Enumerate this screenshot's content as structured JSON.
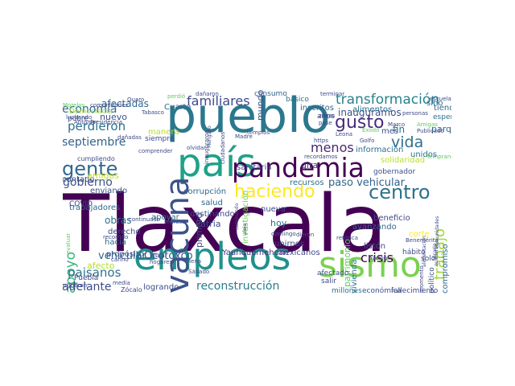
{
  "palette": {
    "purple": "#440154",
    "indigo": "#3b528b",
    "teal": "#21908d",
    "green": "#5dc963",
    "lime": "#8fd744",
    "yellow": "#fde725"
  },
  "words": [
    {
      "text": "Tlaxcala",
      "color": "#440154"
    },
    {
      "text": "pueblo",
      "color": "#2a788e"
    },
    {
      "text": "país",
      "color": "#1fa187"
    },
    {
      "text": "empleos",
      "color": "#21918c"
    },
    {
      "text": "sismo",
      "color": "#7ad151"
    },
    {
      "text": "pandemia",
      "color": "#440154"
    },
    {
      "text": "vacuna",
      "color": "#3b528b"
    },
    {
      "text": "haciendo",
      "color": "#fde725"
    },
    {
      "text": "gente",
      "color": "#31688e"
    },
    {
      "text": "centro",
      "color": "#2c728e"
    },
    {
      "text": "transformación",
      "color": "#26828e"
    },
    {
      "text": "familiares",
      "color": "#3e4a89"
    },
    {
      "text": "septiembre",
      "color": "#33638d"
    },
    {
      "text": "perdieron",
      "color": "#2d708e"
    },
    {
      "text": "economía",
      "color": "#31688e"
    },
    {
      "text": "gobierno",
      "color": "#3b528b"
    },
    {
      "text": "gusto",
      "color": "#472d7b"
    },
    {
      "text": "vida",
      "color": "#2c728e"
    },
    {
      "text": "menos",
      "color": "#482878"
    },
    {
      "text": "trabajo",
      "color": "#a0da39"
    },
    {
      "text": "apoyo",
      "color": "#35b779"
    },
    {
      "text": "paisanos",
      "color": "#2c728e"
    },
    {
      "text": "adelante",
      "color": "#3e4a89"
    },
    {
      "text": "reconstrucción",
      "color": "#287c8e"
    },
    {
      "text": "crisis",
      "color": "#440154"
    },
    {
      "text": "vehicular",
      "color": "#31688e"
    },
    {
      "text": "Ocotoxco",
      "color": "#3b528b"
    },
    {
      "text": "paso vehicular",
      "color": "#33638d"
    },
    {
      "text": "afectadas",
      "color": "#31688e"
    },
    {
      "text": "inauguramos",
      "color": "#3b528b"
    },
    {
      "text": "inscritos",
      "color": "#31688e"
    },
    {
      "text": "alimentos",
      "color": "#2d708e"
    },
    {
      "text": "mexicanos",
      "color": "#3e4a89"
    },
    {
      "text": "Yauhquemehcan",
      "color": "#46327e"
    },
    {
      "text": "nuevo",
      "color": "#3b528b"
    },
    {
      "text": "Cuarta",
      "color": "#31688e"
    },
    {
      "text": "Patria",
      "color": "#3e4a89"
    },
    {
      "text": "salud",
      "color": "#33638d"
    },
    {
      "text": "nueva",
      "color": "#3e4a89"
    },
    {
      "text": "hoy",
      "color": "#2c728e"
    },
    {
      "text": "obras",
      "color": "#2d708e"
    },
    {
      "text": "derecho",
      "color": "#3e4a89"
    },
    {
      "text": "hacia",
      "color": "#31688e"
    },
    {
      "text": "apoyar",
      "color": "#2c728e"
    },
    {
      "text": "enviando",
      "color": "#3b528b"
    },
    {
      "text": "recursos",
      "color": "#2c728e"
    },
    {
      "text": "información",
      "color": "#2d708e"
    },
    {
      "text": "beneficio",
      "color": "#3e4a89"
    },
    {
      "text": "parque",
      "color": "#33638d"
    },
    {
      "text": "espero",
      "color": "#2c728e"
    },
    {
      "text": "tiendas",
      "color": "#31688e"
    },
    {
      "text": "mes",
      "color": "#3b528b"
    },
    {
      "text": "fin",
      "color": "#2c728e"
    },
    {
      "text": "unidos",
      "color": "#2c728e"
    },
    {
      "text": "gira",
      "color": "#46327e"
    },
    {
      "text": "consumo",
      "color": "#33638d"
    },
    {
      "text": "básico",
      "color": "#2c728e"
    },
    {
      "text": "años",
      "color": "#3e4a89"
    },
    {
      "text": "mundo",
      "color": "#3b528b"
    },
    {
      "text": "destinando",
      "color": "#3e4a89"
    },
    {
      "text": "primero",
      "color": "#3e4a89"
    },
    {
      "text": "avanzando",
      "color": "#31688e"
    },
    {
      "text": "solidaridad",
      "color": "#bddf26"
    },
    {
      "text": "investigación",
      "color": "#73d056"
    },
    {
      "text": "corrupción",
      "color": "#31688e"
    },
    {
      "text": "sanitaria",
      "color": "#3e4a89"
    },
    {
      "text": "logrando",
      "color": "#3e4a89"
    },
    {
      "text": "afecto",
      "color": "#b5de2b"
    },
    {
      "text": "Puebla",
      "color": "#3e4a89"
    },
    {
      "text": "propósito",
      "color": "#3b528b"
    },
    {
      "text": "trabajadores",
      "color": "#31688e"
    },
    {
      "text": "contado",
      "color": "#3e4a89"
    },
    {
      "text": "amigos",
      "color": "#c2df23"
    },
    {
      "text": "patrimonio",
      "color": "#5ec962"
    },
    {
      "text": "vivienda",
      "color": "#2c728e"
    },
    {
      "text": "unirnos",
      "color": "#3e4a89"
    },
    {
      "text": "listón",
      "color": "#3b528b"
    },
    {
      "text": "afectado",
      "color": "#3b528b"
    },
    {
      "text": "salir",
      "color": "#3e4a89"
    },
    {
      "text": "económica",
      "color": "#3b528b"
    },
    {
      "text": "fallecimiento",
      "color": "#3e4a89"
    },
    {
      "text": "millones",
      "color": "#2c728e"
    },
    {
      "text": "compromiso",
      "color": "#31688e"
    },
    {
      "text": "político",
      "color": "#3b528b"
    },
    {
      "text": "sino",
      "color": "#2c728e"
    },
    {
      "text": "solo",
      "color": "#3e4a89"
    },
    {
      "text": "hábito",
      "color": "#3e4a89"
    },
    {
      "text": "corte",
      "color": "#fde725"
    },
    {
      "text": "gobernador",
      "color": "#3b528b"
    },
    {
      "text": "Democracia",
      "color": "#a0da39"
    },
    {
      "text": "COVID",
      "color": "#3e4a89"
    },
    {
      "text": "pobre",
      "color": "#3e4a89"
    },
    {
      "text": "siempre",
      "color": "#3e4a89"
    },
    {
      "text": "cumpliendo",
      "color": "#3e4a89"
    },
    {
      "text": "Zócalo",
      "color": "#3e4a89"
    },
    {
      "text": "dañadas",
      "color": "#3e4a89"
    },
    {
      "text": "comprender",
      "color": "#3e4a89"
    },
    {
      "text": "olvidar",
      "color": "#3e4a89"
    },
    {
      "text": "recordamos",
      "color": "#3e4a89"
    },
    {
      "text": "Madre",
      "color": "#3e4a89"
    },
    {
      "text": "regresar",
      "color": "#3e4a89"
    },
    {
      "text": "hogares",
      "color": "#3e4a89"
    },
    {
      "text": "carino",
      "color": "#3e4a89"
    },
    {
      "text": "media",
      "color": "#3e4a89"
    },
    {
      "text": "sufrieron",
      "color": "#3e4a89"
    },
    {
      "text": "recorrido",
      "color": "#3e4a89"
    },
    {
      "text": "visitar",
      "color": "#3e4a89"
    },
    {
      "text": "Mena",
      "color": "#3e4a89"
    },
    {
      "text": "dieron",
      "color": "#3e4a89"
    },
    {
      "text": "domingo",
      "color": "#3e4a89"
    },
    {
      "text": "retórica",
      "color": "#3e4a89"
    },
    {
      "text": "nación",
      "color": "#3e4a89"
    },
    {
      "text": "Benemérita",
      "color": "#3e4a89"
    },
    {
      "text": "Golfo",
      "color": "#3e4a89"
    },
    {
      "text": "templos",
      "color": "#3e4a89"
    },
    {
      "text": "Leona",
      "color": "#3e4a89"
    },
    {
      "text": "Vicario",
      "color": "#3e4a89"
    },
    {
      "text": "Amigas",
      "color": "#5ec962"
    },
    {
      "text": "Publicado",
      "color": "#3e4a89"
    },
    {
      "text": "Temprano",
      "color": "#5ec962"
    },
    {
      "text": "Éxodo",
      "color": "#5ec962"
    },
    {
      "text": "Marco",
      "color": "#3e4a89"
    },
    {
      "text": "escuelas",
      "color": "#3e4a89"
    },
    {
      "text": "personas",
      "color": "#3e4a89"
    },
    {
      "text": "zonas",
      "color": "#3e4a89"
    },
    {
      "text": "pase",
      "color": "#3e4a89"
    },
    {
      "text": "terminar",
      "color": "#3e4a89"
    },
    {
      "text": "dañaron",
      "color": "#3e4a89"
    },
    {
      "text": "perdió",
      "color": "#5ec962"
    },
    {
      "text": "Quaro",
      "color": "#3e4a89"
    },
    {
      "text": "comunidades",
      "color": "#3e4a89"
    },
    {
      "text": "Morelos",
      "color": "#5ec962"
    },
    {
      "text": "Tabasco",
      "color": "#3e4a89"
    },
    {
      "text": "Antonio",
      "color": "#3e4a89"
    },
    {
      "text": "Presidencia",
      "color": "#3e4a89"
    },
    {
      "text": "luchando",
      "color": "#3e4a89"
    },
    {
      "text": "ciudadanos",
      "color": "#3e4a89"
    },
    {
      "text": "inauguraron",
      "color": "#3e4a89"
    },
    {
      "text": "continuado",
      "color": "#3e4a89"
    },
    {
      "text": "Sábado",
      "color": "#3e4a89"
    },
    {
      "text": "evaluar",
      "color": "#5ec962"
    },
    {
      "text": "https",
      "color": "#3e4a89"
    },
    {
      "text": "manera",
      "color": "#b5de2b"
    },
    {
      "text": "caminando",
      "color": "#3e4a89"
    },
    {
      "text": "Mengano",
      "color": "#3e4a89"
    },
    {
      "text": "aleja",
      "color": "#3e4a89"
    },
    {
      "text": "alimentación",
      "color": "#3e4a89"
    },
    {
      "text": "quedaron",
      "color": "#3e4a89"
    },
    {
      "text": "momento",
      "color": "#3e4a89"
    },
    {
      "text": "comunidades",
      "color": "#3e4a89"
    }
  ]
}
